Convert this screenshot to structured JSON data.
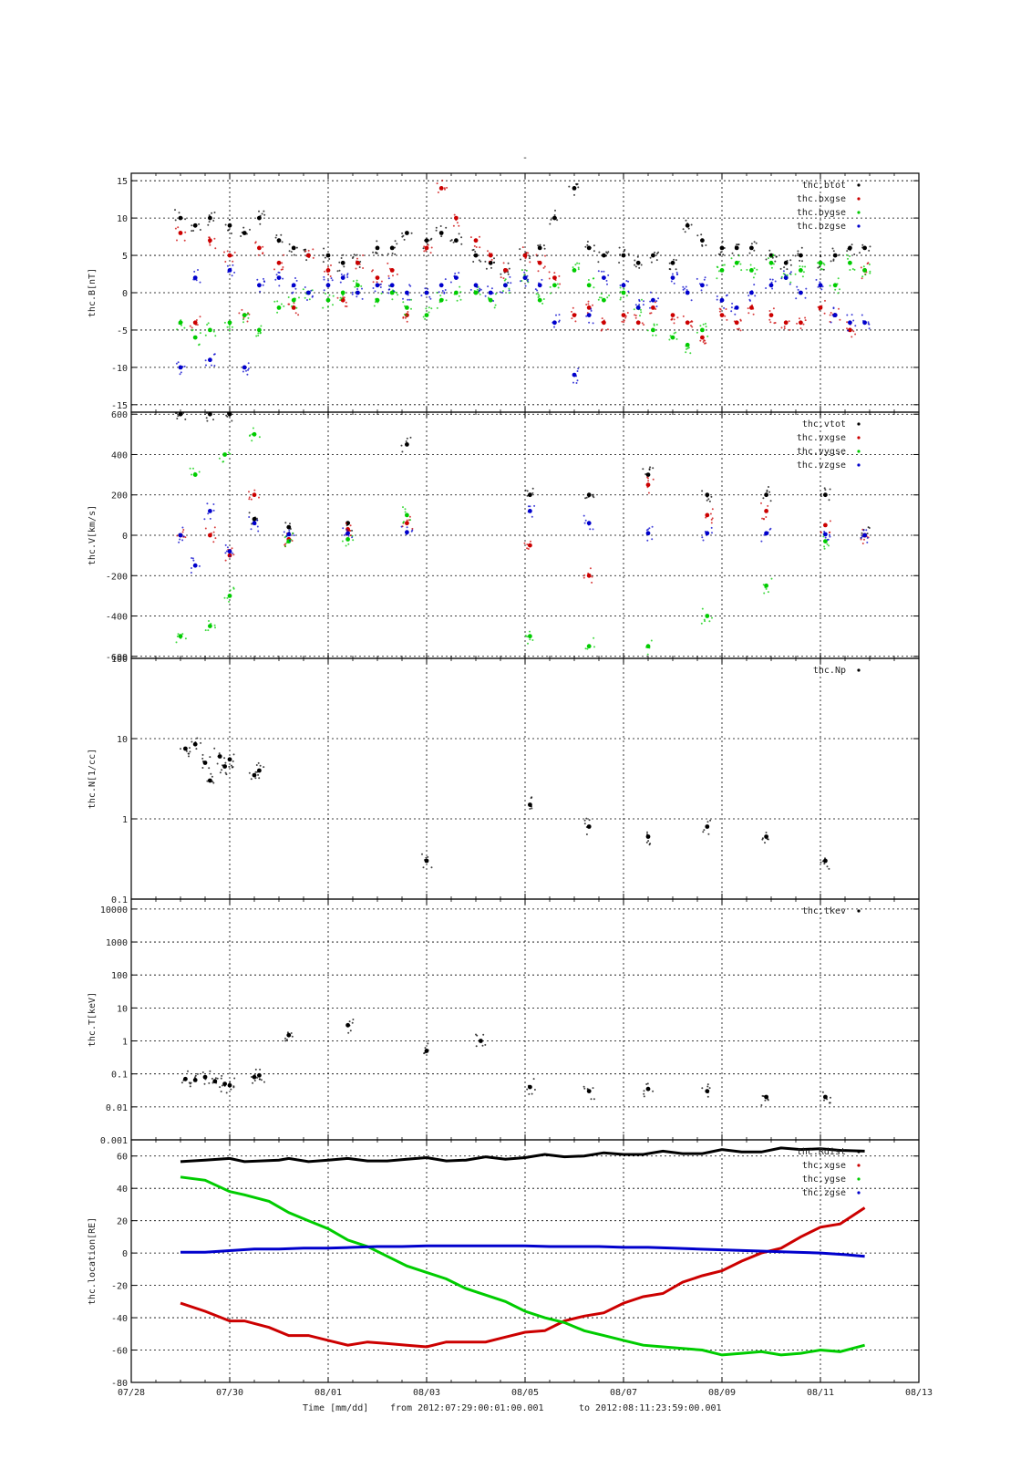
{
  "page_title": "-",
  "xaxis": {
    "label": "Time [mm/dd]",
    "from_label": "from 2012:07:29:00:01:00.001",
    "to_label": "to  2012:08:11:23:59:00.001",
    "xlim_days": [
      0,
      16
    ],
    "ticks": [
      {
        "day": 0,
        "label": "07/28"
      },
      {
        "day": 2,
        "label": "07/30"
      },
      {
        "day": 4,
        "label": "08/01"
      },
      {
        "day": 6,
        "label": "08/03"
      },
      {
        "day": 8,
        "label": "08/05"
      },
      {
        "day": 10,
        "label": "08/07"
      },
      {
        "day": 12,
        "label": "08/09"
      },
      {
        "day": 14,
        "label": "08/11"
      },
      {
        "day": 16,
        "label": "08/13"
      }
    ]
  },
  "chart_data": [
    {
      "type": "scatter",
      "ylabel": "thc.B[nT]",
      "ylim": [
        -16,
        16
      ],
      "yticks": [
        {
          "value": -15,
          "label": "-15"
        },
        {
          "value": -10,
          "label": "-10"
        },
        {
          "value": -5,
          "label": "-5"
        },
        {
          "value": 0,
          "label": "0"
        },
        {
          "value": 5,
          "label": "5"
        },
        {
          "value": 10,
          "label": "10"
        },
        {
          "value": 15,
          "label": "15"
        }
      ],
      "series": [
        {
          "name": "thc.btot",
          "color": "#000000",
          "x": [
            1.0,
            1.3,
            1.6,
            2.0,
            2.3,
            2.6,
            3.0,
            3.3,
            3.6,
            4.0,
            4.3,
            4.6,
            5.0,
            5.3,
            5.6,
            6.0,
            6.3,
            6.6,
            7.0,
            7.3,
            7.6,
            8.0,
            8.3,
            8.6,
            9.0,
            9.3,
            9.6,
            10.0,
            10.3,
            10.6,
            11.0,
            11.3,
            11.6,
            12.0,
            12.3,
            12.6,
            13.0,
            13.3,
            13.6,
            14.0,
            14.3,
            14.6,
            14.9
          ],
          "y": [
            10,
            9,
            10,
            9,
            8,
            10,
            7,
            6,
            5,
            5,
            4,
            4,
            6,
            6,
            8,
            7,
            8,
            7,
            5,
            4,
            3,
            5,
            6,
            10,
            14,
            6,
            5,
            5,
            4,
            5,
            4,
            9,
            7,
            6,
            6,
            6,
            5,
            4,
            5,
            4,
            5,
            6,
            6
          ]
        },
        {
          "name": "thc.bxgse",
          "color": "#cc0000",
          "x": [
            1.0,
            1.3,
            1.6,
            2.0,
            2.3,
            2.6,
            3.0,
            3.3,
            3.6,
            4.0,
            4.3,
            4.6,
            5.0,
            5.3,
            5.6,
            6.0,
            6.3,
            6.6,
            7.0,
            7.3,
            7.6,
            8.0,
            8.3,
            8.6,
            9.0,
            9.3,
            9.6,
            10.0,
            10.3,
            10.6,
            11.0,
            11.3,
            11.6,
            12.0,
            12.3,
            12.6,
            13.0,
            13.3,
            13.6,
            14.0,
            14.3,
            14.6,
            14.9
          ],
          "y": [
            8,
            -4,
            7,
            5,
            -3,
            6,
            4,
            -2,
            5,
            3,
            -1,
            4,
            2,
            3,
            -3,
            6,
            14,
            10,
            7,
            5,
            3,
            5,
            4,
            2,
            -3,
            -2,
            -4,
            -3,
            -4,
            -2,
            -3,
            -4,
            -6,
            -3,
            -4,
            -2,
            -3,
            -4,
            -4,
            -2,
            -3,
            -5,
            3
          ]
        },
        {
          "name": "thc.bygse",
          "color": "#00cc00",
          "x": [
            1.0,
            1.3,
            1.6,
            2.0,
            2.3,
            2.6,
            3.0,
            3.3,
            3.6,
            4.0,
            4.3,
            4.6,
            5.0,
            5.3,
            5.6,
            6.0,
            6.3,
            6.6,
            7.0,
            7.3,
            7.6,
            8.0,
            8.3,
            8.6,
            9.0,
            9.3,
            9.6,
            10.0,
            10.3,
            10.6,
            11.0,
            11.3,
            11.6,
            12.0,
            12.3,
            12.6,
            13.0,
            13.3,
            13.6,
            14.0,
            14.3,
            14.6,
            14.9
          ],
          "y": [
            -4,
            -6,
            -5,
            -4,
            -3,
            -5,
            -2,
            -1,
            0,
            -1,
            0,
            1,
            -1,
            0,
            -2,
            -3,
            -1,
            0,
            0,
            -1,
            1,
            2,
            -1,
            1,
            3,
            1,
            -1,
            0,
            -2,
            -5,
            -6,
            -7,
            -5,
            3,
            4,
            3,
            4,
            2,
            3,
            4,
            1,
            4,
            3
          ]
        },
        {
          "name": "thc.bzgse",
          "color": "#0000cc",
          "x": [
            1.0,
            1.3,
            1.6,
            2.0,
            2.3,
            2.6,
            3.0,
            3.3,
            3.6,
            4.0,
            4.3,
            4.6,
            5.0,
            5.3,
            5.6,
            6.0,
            6.3,
            6.6,
            7.0,
            7.3,
            7.6,
            8.0,
            8.3,
            8.6,
            9.0,
            9.3,
            9.6,
            10.0,
            10.3,
            10.6,
            11.0,
            11.3,
            11.6,
            12.0,
            12.3,
            12.6,
            13.0,
            13.3,
            13.6,
            14.0,
            14.3,
            14.6,
            14.9
          ],
          "y": [
            -10,
            2,
            -9,
            3,
            -10,
            1,
            2,
            1,
            0,
            1,
            2,
            0,
            1,
            1,
            0,
            0,
            1,
            2,
            1,
            0,
            1,
            2,
            1,
            -4,
            -11,
            -3,
            2,
            1,
            -2,
            -1,
            2,
            0,
            1,
            -1,
            -2,
            0,
            1,
            2,
            0,
            1,
            -3,
            -4,
            -4
          ]
        }
      ]
    },
    {
      "type": "scatter",
      "ylabel": "thc.V[km/s]",
      "ylim": [
        -610,
        610
      ],
      "yticks": [
        {
          "value": -600,
          "label": "-600"
        },
        {
          "value": -400,
          "label": "-400"
        },
        {
          "value": -200,
          "label": "-200"
        },
        {
          "value": 0,
          "label": "0"
        },
        {
          "value": 200,
          "label": "200"
        },
        {
          "value": 400,
          "label": "400"
        },
        {
          "value": 600,
          "label": "600"
        }
      ],
      "series": [
        {
          "name": "thc.vtot",
          "color": "#000000",
          "x": [
            1.0,
            1.6,
            2.0,
            2.5,
            3.2,
            4.4,
            5.6,
            8.1,
            9.3,
            10.5,
            11.7,
            12.9,
            14.1,
            14.9
          ],
          "y": [
            600,
            600,
            600,
            80,
            40,
            60,
            450,
            200,
            200,
            300,
            200,
            200,
            200,
            0
          ]
        },
        {
          "name": "thc.vxgse",
          "color": "#cc0000",
          "x": [
            1.0,
            1.6,
            2.0,
            2.5,
            3.2,
            4.4,
            5.6,
            8.1,
            9.3,
            10.5,
            11.7,
            12.9,
            14.1,
            14.9
          ],
          "y": [
            0,
            0,
            -100,
            200,
            -20,
            30,
            60,
            -50,
            -200,
            250,
            100,
            120,
            50,
            0
          ]
        },
        {
          "name": "thc.vygse",
          "color": "#00cc00",
          "x": [
            1.0,
            1.3,
            1.6,
            1.9,
            2.0,
            2.5,
            3.2,
            4.4,
            5.6,
            8.1,
            9.3,
            10.5,
            11.7,
            12.9,
            14.1
          ],
          "y": [
            -500,
            300,
            -450,
            400,
            -300,
            500,
            -30,
            -20,
            100,
            -500,
            -550,
            -550,
            -400,
            -250,
            -30
          ]
        },
        {
          "name": "thc.vzgse",
          "color": "#0000cc",
          "x": [
            1.0,
            1.3,
            1.6,
            2.0,
            2.5,
            3.2,
            4.4,
            5.6,
            8.1,
            9.3,
            10.5,
            11.7,
            12.9,
            14.1,
            14.9
          ],
          "y": [
            0,
            -150,
            120,
            -80,
            60,
            5,
            10,
            15,
            120,
            60,
            10,
            10,
            10,
            5,
            0
          ]
        }
      ]
    },
    {
      "type": "scatter",
      "ylabel": "thc.N[1/cc]",
      "yscale": "log",
      "ylim": [
        0.1,
        100
      ],
      "yticks": [
        {
          "value": 0.1,
          "label": "0.1"
        },
        {
          "value": 1,
          "label": "1"
        },
        {
          "value": 10,
          "label": "10"
        },
        {
          "value": 100,
          "label": "100"
        }
      ],
      "series": [
        {
          "name": "thc.Np",
          "color": "#000000",
          "x": [
            1.1,
            1.3,
            1.5,
            1.6,
            1.8,
            1.9,
            2.0,
            2.5,
            2.6,
            6.0,
            8.1,
            9.3,
            10.5,
            11.7,
            12.9,
            14.1
          ],
          "y": [
            7.5,
            8.5,
            5.0,
            3.0,
            6.0,
            4.5,
            5.5,
            3.5,
            4.0,
            0.3,
            1.5,
            0.8,
            0.6,
            0.8,
            0.6,
            0.3
          ]
        }
      ]
    },
    {
      "type": "scatter",
      "ylabel": "thc.T[keV]",
      "yscale": "log",
      "ylim": [
        0.001,
        20000
      ],
      "yticks": [
        {
          "value": 0.001,
          "label": "0.001"
        },
        {
          "value": 0.01,
          "label": "0.01"
        },
        {
          "value": 0.1,
          "label": "0.1"
        },
        {
          "value": 1,
          "label": "1"
        },
        {
          "value": 10,
          "label": "10"
        },
        {
          "value": 100,
          "label": "100"
        },
        {
          "value": 1000,
          "label": "1000"
        },
        {
          "value": 10000,
          "label": "10000"
        }
      ],
      "series": [
        {
          "name": "thc.tkev",
          "color": "#000000",
          "x": [
            1.1,
            1.3,
            1.5,
            1.7,
            1.9,
            2.0,
            2.5,
            2.6,
            3.2,
            4.4,
            6.0,
            7.1,
            8.1,
            9.3,
            10.5,
            11.7,
            12.9,
            14.1
          ],
          "y": [
            0.07,
            0.065,
            0.08,
            0.06,
            0.05,
            0.045,
            0.08,
            0.09,
            1.5,
            3.0,
            0.5,
            1.0,
            0.04,
            0.03,
            0.035,
            0.03,
            0.02,
            0.02
          ]
        }
      ]
    },
    {
      "type": "line",
      "ylabel": "thc.location[RE]",
      "ylim": [
        -80,
        70
      ],
      "yticks": [
        {
          "value": -80,
          "label": "-80"
        },
        {
          "value": -60,
          "label": "-60"
        },
        {
          "value": -40,
          "label": "-40"
        },
        {
          "value": -20,
          "label": "-20"
        },
        {
          "value": 0,
          "label": "0"
        },
        {
          "value": 20,
          "label": "20"
        },
        {
          "value": 40,
          "label": "40"
        },
        {
          "value": 60,
          "label": "60"
        }
      ],
      "series": [
        {
          "name": "thc.Rdist",
          "color": "#000000",
          "x": [
            1.0,
            1.5,
            2.0,
            2.3,
            3.0,
            3.2,
            3.6,
            4.0,
            4.4,
            4.8,
            5.2,
            5.6,
            6.0,
            6.4,
            6.8,
            7.2,
            7.6,
            8.0,
            8.4,
            8.8,
            9.2,
            9.6,
            10.0,
            10.4,
            10.8,
            11.2,
            11.6,
            12.0,
            12.4,
            12.8,
            13.2,
            13.6,
            14.0,
            14.4,
            14.9
          ],
          "y": [
            56.5,
            57.5,
            58.5,
            56.5,
            57.5,
            58.5,
            56.5,
            57.5,
            58.5,
            57,
            57,
            58,
            59,
            57,
            57.5,
            59.5,
            58,
            59,
            61,
            59.5,
            60,
            62,
            61,
            61,
            63,
            61.5,
            61.5,
            64,
            62.5,
            62.5,
            65,
            64,
            64.5,
            63.5,
            63
          ]
        },
        {
          "name": "thc.xgse",
          "color": "#cc0000",
          "x": [
            1.0,
            1.5,
            2.0,
            2.3,
            2.8,
            3.2,
            3.6,
            4.0,
            4.4,
            4.8,
            5.2,
            5.6,
            6.0,
            6.4,
            6.8,
            7.2,
            7.6,
            8.0,
            8.4,
            8.8,
            9.2,
            9.6,
            10.0,
            10.4,
            10.8,
            11.2,
            11.6,
            12.0,
            12.4,
            12.8,
            13.2,
            13.6,
            14.0,
            14.4,
            14.9
          ],
          "y": [
            -31,
            -36,
            -42,
            -42,
            -46,
            -51,
            -51,
            -54,
            -57,
            -55,
            -56,
            -57,
            -58,
            -55,
            -55,
            -55,
            -52,
            -49,
            -48,
            -42,
            -39,
            -37,
            -31,
            -27,
            -25,
            -18,
            -14,
            -11,
            -5,
            0,
            3,
            10,
            16,
            18,
            28
          ]
        },
        {
          "name": "thc.ygse",
          "color": "#00cc00",
          "x": [
            1.0,
            1.5,
            2.0,
            2.3,
            2.8,
            3.2,
            3.6,
            4.0,
            4.4,
            4.8,
            5.2,
            5.6,
            6.0,
            6.4,
            6.8,
            7.2,
            7.6,
            8.0,
            8.4,
            8.8,
            9.2,
            9.6,
            10.0,
            10.4,
            10.8,
            11.2,
            11.6,
            12.0,
            12.4,
            12.8,
            13.2,
            13.6,
            14.0,
            14.4,
            14.9
          ],
          "y": [
            47,
            45,
            38,
            36,
            32,
            25,
            20,
            15,
            8,
            4,
            -2,
            -8,
            -12,
            -16,
            -22,
            -26,
            -30,
            -36,
            -40,
            -43,
            -48,
            -51,
            -54,
            -57,
            -58,
            -59,
            -60,
            -63,
            -62,
            -61,
            -63,
            -62,
            -60,
            -61,
            -57
          ]
        },
        {
          "name": "thc.zgse",
          "color": "#0000cc",
          "x": [
            1.0,
            1.5,
            2.0,
            2.5,
            3.0,
            3.5,
            4.0,
            4.5,
            5.0,
            5.5,
            6.0,
            6.5,
            7.0,
            7.5,
            8.0,
            8.5,
            9.0,
            9.5,
            10.0,
            10.5,
            11.0,
            11.5,
            12.0,
            12.5,
            13.0,
            13.5,
            14.0,
            14.5,
            14.9
          ],
          "y": [
            0.5,
            0.5,
            1.5,
            2.5,
            2.5,
            3,
            3,
            3.5,
            4,
            4,
            4.5,
            4.5,
            4.5,
            4.5,
            4.5,
            4,
            4,
            4,
            3.5,
            3.5,
            3,
            2.5,
            2,
            1.5,
            1,
            0.5,
            0,
            -1,
            -2
          ]
        }
      ]
    }
  ]
}
